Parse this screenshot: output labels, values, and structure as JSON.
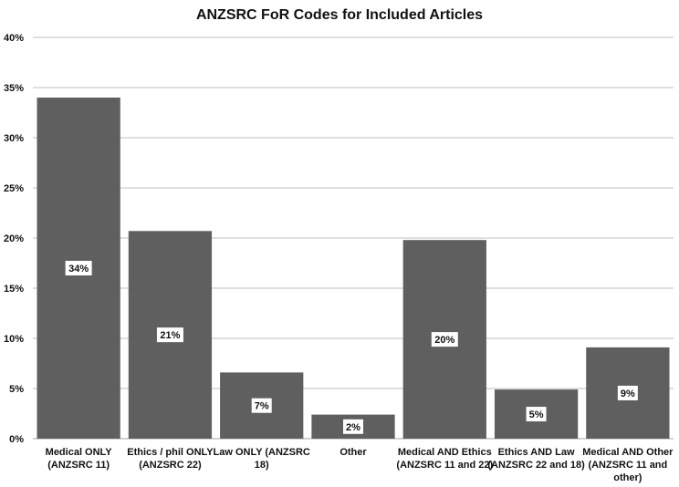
{
  "chart_data": {
    "type": "bar",
    "title": "ANZSRC FoR Codes for Included Articles",
    "categories": [
      [
        "Medical ONLY",
        "(ANZSRC  11)"
      ],
      [
        "Ethics / phil ONLY",
        "(ANZSRC 22)"
      ],
      [
        "Law ONLY (ANZSRC",
        "18)"
      ],
      [
        "Other"
      ],
      [
        "Medical AND Ethics",
        "(ANZSRC 11 and 22)"
      ],
      [
        "Ethics AND Law",
        "(ANZSRC 22 and 18)"
      ],
      [
        "Medical AND Other",
        "(ANZSRC  11 and",
        "other)"
      ]
    ],
    "values": [
      34,
      20.7,
      6.6,
      2.4,
      19.8,
      4.9,
      9.1
    ],
    "data_labels": [
      "34%",
      "21%",
      "7%",
      "2%",
      "20%",
      "5%",
      "9%"
    ],
    "ylim": [
      0,
      40
    ],
    "yticks": [
      0,
      5,
      10,
      15,
      20,
      25,
      30,
      35,
      40
    ],
    "ytick_labels": [
      "0%",
      "5%",
      "10%",
      "15%",
      "20%",
      "25%",
      "30%",
      "35%",
      "40%"
    ],
    "grid": true,
    "legend": "none",
    "colors": {
      "bar": "#5f5f5f",
      "grid": "#bfbfbf",
      "label_box": "#ffffff"
    }
  }
}
